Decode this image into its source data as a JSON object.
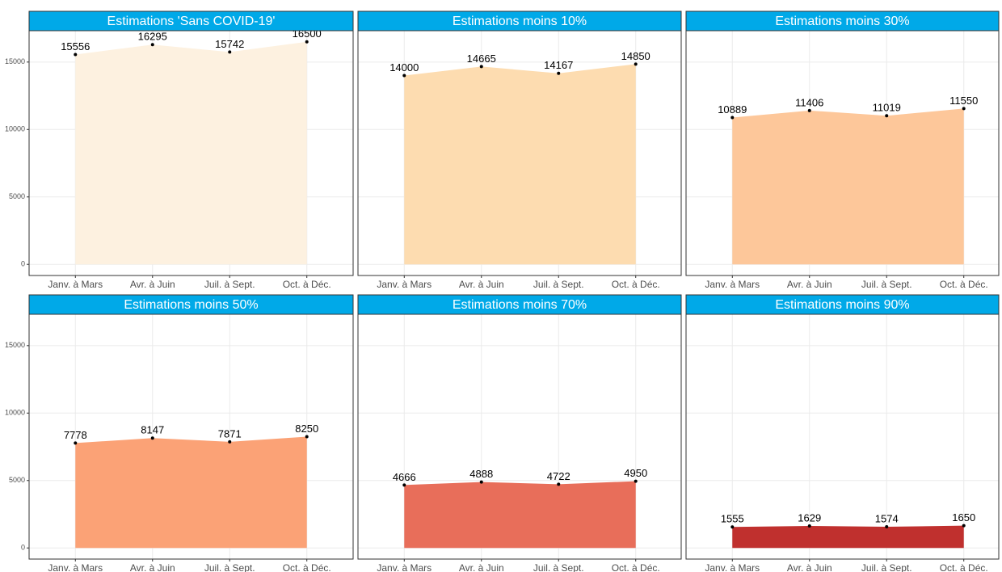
{
  "chart_data": [
    {
      "type": "area",
      "title": "Estimations 'Sans COVID-19'",
      "categories": [
        "Janv. à Mars",
        "Avr. à Juin",
        "Juil. à Sept.",
        "Oct. à Déc."
      ],
      "values": [
        15556,
        16295,
        15742,
        16500
      ],
      "color": "#fdf1e0",
      "ylim": [
        -825,
        17325
      ],
      "yticks": [
        0,
        5000,
        10000,
        15000
      ],
      "grid": true
    },
    {
      "type": "area",
      "title": "Estimations moins 10%",
      "categories": [
        "Janv. à Mars",
        "Avr. à Juin",
        "Juil. à Sept.",
        "Oct. à Déc."
      ],
      "values": [
        14000,
        14665,
        14167,
        14850
      ],
      "color": "#fddcb0",
      "ylim": [
        -825,
        17325
      ],
      "yticks": [
        0,
        5000,
        10000,
        15000
      ],
      "grid": true
    },
    {
      "type": "area",
      "title": "Estimations moins 30%",
      "categories": [
        "Janv. à Mars",
        "Avr. à Juin",
        "Juil. à Sept.",
        "Oct. à Déc."
      ],
      "values": [
        10889,
        11406,
        11019,
        11550
      ],
      "color": "#fdc79a",
      "ylim": [
        -825,
        17325
      ],
      "yticks": [
        0,
        5000,
        10000,
        15000
      ],
      "grid": true
    },
    {
      "type": "area",
      "title": "Estimations moins 50%",
      "categories": [
        "Janv. à Mars",
        "Avr. à Juin",
        "Juil. à Sept.",
        "Oct. à Déc."
      ],
      "values": [
        7778,
        8147,
        7871,
        8250
      ],
      "color": "#fba276",
      "ylim": [
        -825,
        17325
      ],
      "yticks": [
        0,
        5000,
        10000,
        15000
      ],
      "grid": true
    },
    {
      "type": "area",
      "title": "Estimations moins 70%",
      "categories": [
        "Janv. à Mars",
        "Avr. à Juin",
        "Juil. à Sept.",
        "Oct. à Déc."
      ],
      "values": [
        4666,
        4888,
        4722,
        4950
      ],
      "color": "#e86e5a",
      "ylim": [
        -825,
        17325
      ],
      "yticks": [
        0,
        5000,
        10000,
        15000
      ],
      "grid": true
    },
    {
      "type": "area",
      "title": "Estimations moins 90%",
      "categories": [
        "Janv. à Mars",
        "Avr. à Juin",
        "Juil. à Sept.",
        "Oct. à Déc."
      ],
      "values": [
        1555,
        1629,
        1574,
        1650
      ],
      "color": "#c0302e",
      "ylim": [
        -825,
        17325
      ],
      "yticks": [
        0,
        5000,
        10000,
        15000
      ],
      "grid": true
    }
  ]
}
